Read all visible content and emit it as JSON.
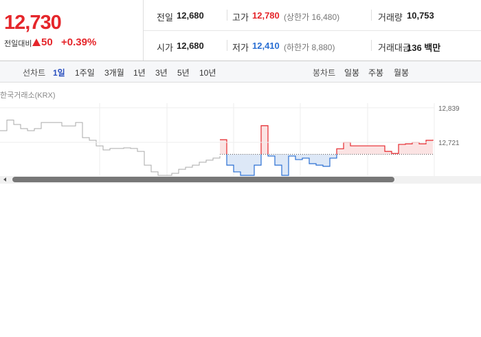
{
  "price": {
    "current": "12,730",
    "change_label": "전일대비",
    "change": "50",
    "change_rate": "+0.39%"
  },
  "quote": [
    [
      {
        "label": "전일",
        "value": "12,680"
      },
      {
        "label": "고가",
        "value": "12,780",
        "limit": "(상한가 16,480)"
      },
      {
        "label": "거래량",
        "value": "10,753"
      }
    ],
    [
      {
        "label": "시가",
        "value": "12,680"
      },
      {
        "label": "저가",
        "value": "12,410",
        "limit": "(하한가 8,880)"
      },
      {
        "label": "거래대금",
        "value": "136 백만"
      }
    ]
  ],
  "tabs": {
    "line_label": "선차트",
    "line": [
      "1일",
      "1주일",
      "3개월",
      "1년",
      "3년",
      "5년",
      "10년"
    ],
    "candle_label": "봉차트",
    "candle": [
      "일봉",
      "주봉",
      "월봉"
    ]
  },
  "source": "한국거래소(KRX)",
  "chart_data": {
    "type": "line",
    "baseline": 12680,
    "ylim": [
      12601,
      12855
    ],
    "yticks": [
      {
        "value": 12839,
        "label": "12,839"
      },
      {
        "value": 12721,
        "label": "12,721"
      }
    ],
    "series": [
      {
        "color": "#aaaaaa",
        "values": [
          12761,
          12797,
          12782,
          12768,
          12761,
          12768,
          12789,
          12789,
          12789,
          12777,
          12777,
          12789,
          12737,
          12728,
          12709,
          12695,
          12700,
          12700,
          12702,
          12700,
          12690,
          12643,
          12620,
          12608,
          12608,
          12615,
          12629,
          12636,
          12643,
          12653,
          12660,
          12667,
          12674,
          null,
          null,
          null,
          null,
          null,
          null,
          null,
          null,
          null,
          null,
          null,
          null,
          null,
          null,
          null,
          null,
          null,
          null,
          null,
          null,
          null,
          null,
          null,
          null,
          null,
          null,
          null,
          null,
          null,
          null,
          null
        ]
      },
      {
        "color": "#e5262b",
        "values": [
          null,
          null,
          null,
          null,
          null,
          null,
          null,
          null,
          null,
          null,
          null,
          null,
          null,
          null,
          null,
          null,
          null,
          null,
          null,
          null,
          null,
          null,
          null,
          null,
          null,
          null,
          null,
          null,
          null,
          null,
          null,
          null,
          12730,
          12643,
          12620,
          12608,
          12608,
          12643,
          12778,
          12674,
          12643,
          12608,
          12674,
          12662,
          12667,
          12648,
          12643,
          12639,
          12667,
          12699,
          12721,
          12709,
          12709,
          12709,
          12709,
          12709,
          12690,
          12683,
          12714,
          12716,
          12721,
          12716,
          12728,
          12730
        ]
      }
    ],
    "down_color": "#2a6fd3"
  }
}
